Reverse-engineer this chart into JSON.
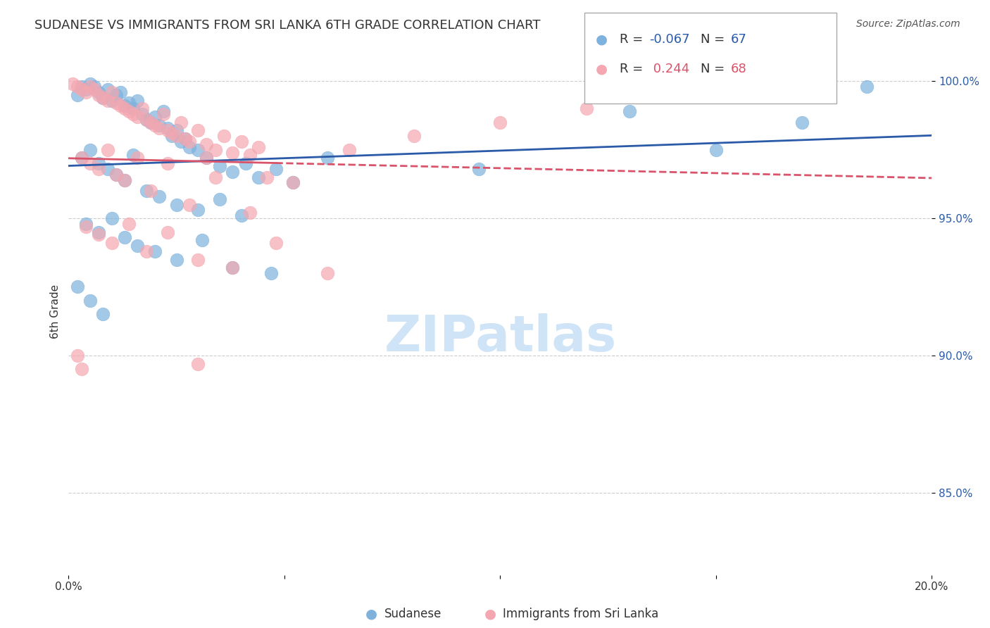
{
  "title": "SUDANESE VS IMMIGRANTS FROM SRI LANKA 6TH GRADE CORRELATION CHART",
  "source": "Source: ZipAtlas.com",
  "ylabel": "6th Grade",
  "xmin": 0.0,
  "xmax": 0.2,
  "ymin": 0.82,
  "ymax": 1.012,
  "yticks": [
    0.85,
    0.9,
    0.95,
    1.0
  ],
  "ytick_labels": [
    "85.0%",
    "90.0%",
    "95.0%",
    "100.0%"
  ],
  "blue_color": "#7EB2DD",
  "pink_color": "#F4A7B0",
  "blue_line_color": "#2B5BA8",
  "pink_line_color": "#D9546A",
  "background_color": "#FFFFFF",
  "watermark_color": "#D0E4F7",
  "sudanese_scatter": [
    [
      0.002,
      0.995
    ],
    [
      0.003,
      0.998
    ],
    [
      0.004,
      0.997
    ],
    [
      0.005,
      0.999
    ],
    [
      0.006,
      0.998
    ],
    [
      0.007,
      0.996
    ],
    [
      0.008,
      0.994
    ],
    [
      0.009,
      0.997
    ],
    [
      0.01,
      0.993
    ],
    [
      0.011,
      0.995
    ],
    [
      0.012,
      0.996
    ],
    [
      0.013,
      0.991
    ],
    [
      0.014,
      0.992
    ],
    [
      0.015,
      0.99
    ],
    [
      0.016,
      0.993
    ],
    [
      0.017,
      0.988
    ],
    [
      0.018,
      0.986
    ],
    [
      0.019,
      0.985
    ],
    [
      0.02,
      0.987
    ],
    [
      0.021,
      0.984
    ],
    [
      0.022,
      0.989
    ],
    [
      0.023,
      0.983
    ],
    [
      0.024,
      0.98
    ],
    [
      0.025,
      0.982
    ],
    [
      0.026,
      0.978
    ],
    [
      0.027,
      0.979
    ],
    [
      0.028,
      0.976
    ],
    [
      0.03,
      0.975
    ],
    [
      0.032,
      0.972
    ],
    [
      0.035,
      0.969
    ],
    [
      0.038,
      0.967
    ],
    [
      0.041,
      0.97
    ],
    [
      0.044,
      0.965
    ],
    [
      0.048,
      0.968
    ],
    [
      0.052,
      0.963
    ],
    [
      0.003,
      0.972
    ],
    [
      0.005,
      0.975
    ],
    [
      0.007,
      0.97
    ],
    [
      0.009,
      0.968
    ],
    [
      0.011,
      0.966
    ],
    [
      0.013,
      0.964
    ],
    [
      0.015,
      0.973
    ],
    [
      0.018,
      0.96
    ],
    [
      0.021,
      0.958
    ],
    [
      0.025,
      0.955
    ],
    [
      0.03,
      0.953
    ],
    [
      0.035,
      0.957
    ],
    [
      0.04,
      0.951
    ],
    [
      0.004,
      0.948
    ],
    [
      0.007,
      0.945
    ],
    [
      0.01,
      0.95
    ],
    [
      0.013,
      0.943
    ],
    [
      0.016,
      0.94
    ],
    [
      0.02,
      0.938
    ],
    [
      0.025,
      0.935
    ],
    [
      0.031,
      0.942
    ],
    [
      0.038,
      0.932
    ],
    [
      0.047,
      0.93
    ],
    [
      0.06,
      0.972
    ],
    [
      0.095,
      0.968
    ],
    [
      0.13,
      0.989
    ],
    [
      0.15,
      0.975
    ],
    [
      0.17,
      0.985
    ],
    [
      0.185,
      0.998
    ],
    [
      0.002,
      0.925
    ],
    [
      0.005,
      0.92
    ],
    [
      0.008,
      0.915
    ]
  ],
  "srilanka_scatter": [
    [
      0.001,
      0.999
    ],
    [
      0.002,
      0.998
    ],
    [
      0.003,
      0.997
    ],
    [
      0.004,
      0.996
    ],
    [
      0.005,
      0.998
    ],
    [
      0.006,
      0.997
    ],
    [
      0.007,
      0.995
    ],
    [
      0.008,
      0.994
    ],
    [
      0.009,
      0.993
    ],
    [
      0.01,
      0.996
    ],
    [
      0.011,
      0.992
    ],
    [
      0.012,
      0.991
    ],
    [
      0.013,
      0.99
    ],
    [
      0.014,
      0.989
    ],
    [
      0.015,
      0.988
    ],
    [
      0.016,
      0.987
    ],
    [
      0.017,
      0.99
    ],
    [
      0.018,
      0.986
    ],
    [
      0.019,
      0.985
    ],
    [
      0.02,
      0.984
    ],
    [
      0.021,
      0.983
    ],
    [
      0.022,
      0.988
    ],
    [
      0.023,
      0.982
    ],
    [
      0.024,
      0.981
    ],
    [
      0.025,
      0.98
    ],
    [
      0.026,
      0.985
    ],
    [
      0.027,
      0.979
    ],
    [
      0.028,
      0.978
    ],
    [
      0.03,
      0.982
    ],
    [
      0.032,
      0.977
    ],
    [
      0.034,
      0.975
    ],
    [
      0.036,
      0.98
    ],
    [
      0.038,
      0.974
    ],
    [
      0.04,
      0.978
    ],
    [
      0.042,
      0.973
    ],
    [
      0.044,
      0.976
    ],
    [
      0.003,
      0.972
    ],
    [
      0.005,
      0.97
    ],
    [
      0.007,
      0.968
    ],
    [
      0.009,
      0.975
    ],
    [
      0.011,
      0.966
    ],
    [
      0.013,
      0.964
    ],
    [
      0.016,
      0.972
    ],
    [
      0.019,
      0.96
    ],
    [
      0.023,
      0.97
    ],
    [
      0.028,
      0.955
    ],
    [
      0.034,
      0.965
    ],
    [
      0.042,
      0.952
    ],
    [
      0.004,
      0.947
    ],
    [
      0.007,
      0.944
    ],
    [
      0.01,
      0.941
    ],
    [
      0.014,
      0.948
    ],
    [
      0.018,
      0.938
    ],
    [
      0.023,
      0.945
    ],
    [
      0.03,
      0.935
    ],
    [
      0.038,
      0.932
    ],
    [
      0.048,
      0.941
    ],
    [
      0.06,
      0.93
    ],
    [
      0.002,
      0.9
    ],
    [
      0.003,
      0.895
    ],
    [
      0.03,
      0.897
    ],
    [
      0.032,
      0.972
    ],
    [
      0.046,
      0.965
    ],
    [
      0.052,
      0.963
    ],
    [
      0.065,
      0.975
    ],
    [
      0.08,
      0.98
    ],
    [
      0.1,
      0.985
    ],
    [
      0.12,
      0.99
    ]
  ]
}
